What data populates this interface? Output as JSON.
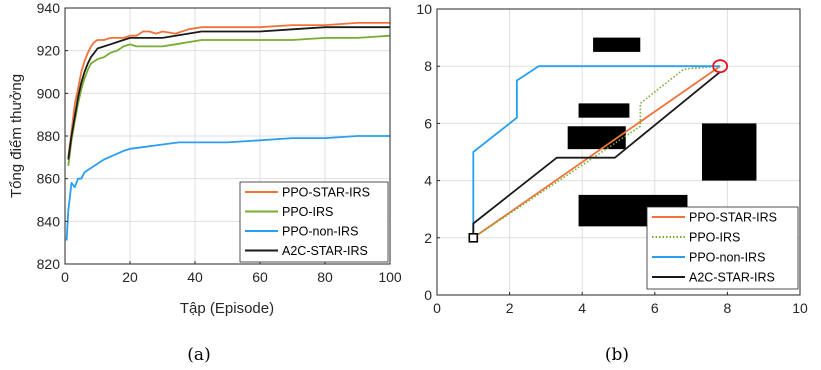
{
  "chart_data": [
    {
      "type": "line",
      "xlabel": "Tập (Episode)",
      "ylabel": "Tổng điểm thưởng",
      "xlim": [
        0,
        100
      ],
      "ylim": [
        820,
        940
      ],
      "xticks": [
        "0",
        "20",
        "40",
        "60",
        "80",
        "100"
      ],
      "yticks": [
        "820",
        "840",
        "860",
        "880",
        "900",
        "920",
        "940"
      ],
      "grid": true,
      "legend_position": "bottom-right",
      "caption": "(a)",
      "series": [
        {
          "name": "PPO-STAR-IRS",
          "color": "#f0733a",
          "x": [
            1,
            2,
            3,
            4,
            5,
            6,
            7,
            8,
            9,
            10,
            12,
            14,
            16,
            18,
            20,
            22,
            24,
            26,
            28,
            30,
            34,
            38,
            42,
            46,
            50,
            60,
            70,
            80,
            90,
            100
          ],
          "y": [
            870,
            882,
            895,
            902,
            910,
            915,
            919,
            922,
            924,
            925,
            925,
            926,
            926,
            926,
            927,
            927,
            929,
            929,
            928,
            929,
            928,
            930,
            931,
            931,
            931,
            931,
            932,
            932,
            933,
            933
          ]
        },
        {
          "name": "PPO-IRS",
          "color": "#77ac30",
          "x": [
            1,
            2,
            3,
            4,
            5,
            6,
            7,
            8,
            9,
            10,
            12,
            14,
            16,
            18,
            20,
            22,
            24,
            26,
            28,
            30,
            34,
            38,
            42,
            46,
            50,
            60,
            70,
            80,
            90,
            100
          ],
          "y": [
            866,
            878,
            887,
            895,
            902,
            907,
            911,
            914,
            915,
            916,
            917,
            919,
            920,
            922,
            923,
            922,
            922,
            922,
            922,
            922,
            923,
            924,
            925,
            925,
            925,
            925,
            925,
            926,
            926,
            927
          ]
        },
        {
          "name": "PPO-non-IRS",
          "color": "#2a9ff0",
          "x": [
            0.5,
            1,
            2,
            3,
            4,
            5,
            6,
            8,
            10,
            12,
            15,
            18,
            20,
            25,
            30,
            35,
            40,
            50,
            60,
            70,
            80,
            90,
            100
          ],
          "y": [
            831,
            845,
            858,
            856,
            860,
            860,
            863,
            865,
            867,
            869,
            871,
            873,
            874,
            875,
            876,
            877,
            877,
            877,
            878,
            879,
            879,
            880,
            880
          ]
        },
        {
          "name": "A2C-STAR-IRS",
          "color": "#1a1a1a",
          "x": [
            1,
            2,
            3,
            4,
            5,
            6,
            7,
            8,
            9,
            10,
            12,
            14,
            16,
            18,
            20,
            22,
            24,
            26,
            28,
            30,
            34,
            38,
            42,
            46,
            50,
            60,
            70,
            80,
            90,
            100
          ],
          "y": [
            869,
            880,
            889,
            898,
            905,
            910,
            914,
            917,
            919,
            921,
            922,
            923,
            924,
            925,
            926,
            926,
            926,
            926,
            926,
            926,
            927,
            928,
            929,
            929,
            929,
            929,
            930,
            931,
            931,
            931
          ]
        }
      ]
    },
    {
      "type": "line",
      "xlim": [
        0,
        10
      ],
      "ylim": [
        0,
        10
      ],
      "xticks": [
        "0",
        "2",
        "4",
        "6",
        "8",
        "10"
      ],
      "yticks": [
        "0",
        "2",
        "4",
        "6",
        "8",
        "10"
      ],
      "grid": true,
      "legend_position": "bottom-right",
      "caption": "(b)",
      "start": {
        "x": 1.0,
        "y": 2.0
      },
      "goal": {
        "x": 7.8,
        "y": 8.0
      },
      "obstacles": [
        {
          "x0": 4.3,
          "x1": 5.6,
          "y0": 8.5,
          "y1": 9.0
        },
        {
          "x0": 3.9,
          "x1": 5.3,
          "y0": 6.2,
          "y1": 6.7
        },
        {
          "x0": 3.6,
          "x1": 5.2,
          "y0": 5.1,
          "y1": 5.9
        },
        {
          "x0": 7.3,
          "x1": 8.8,
          "y0": 4.0,
          "y1": 6.0
        },
        {
          "x0": 3.9,
          "x1": 6.9,
          "y0": 2.4,
          "y1": 3.5
        }
      ],
      "series": [
        {
          "name": "PPO-STAR-IRS",
          "color": "#f0733a",
          "style": "solid",
          "x": [
            1.0,
            7.8
          ],
          "y": [
            2.0,
            8.0
          ]
        },
        {
          "name": "PPO-IRS",
          "color": "#77ac30",
          "style": "dotted",
          "x": [
            1.0,
            5.6,
            5.6,
            6.4,
            6.8,
            7.8
          ],
          "y": [
            2.0,
            5.9,
            6.7,
            7.5,
            7.9,
            8.0
          ]
        },
        {
          "name": "PPO-non-IRS",
          "color": "#2a9ff0",
          "style": "solid",
          "x": [
            1.0,
            1.0,
            2.2,
            2.2,
            2.8,
            7.8
          ],
          "y": [
            2.0,
            5.0,
            6.2,
            7.5,
            8.0,
            8.0
          ]
        },
        {
          "name": "A2C-STAR-IRS",
          "color": "#1a1a1a",
          "style": "solid",
          "x": [
            1.0,
            1.0,
            3.3,
            4.9,
            7.8
          ],
          "y": [
            2.0,
            2.5,
            4.8,
            4.8,
            7.8
          ]
        }
      ]
    }
  ]
}
